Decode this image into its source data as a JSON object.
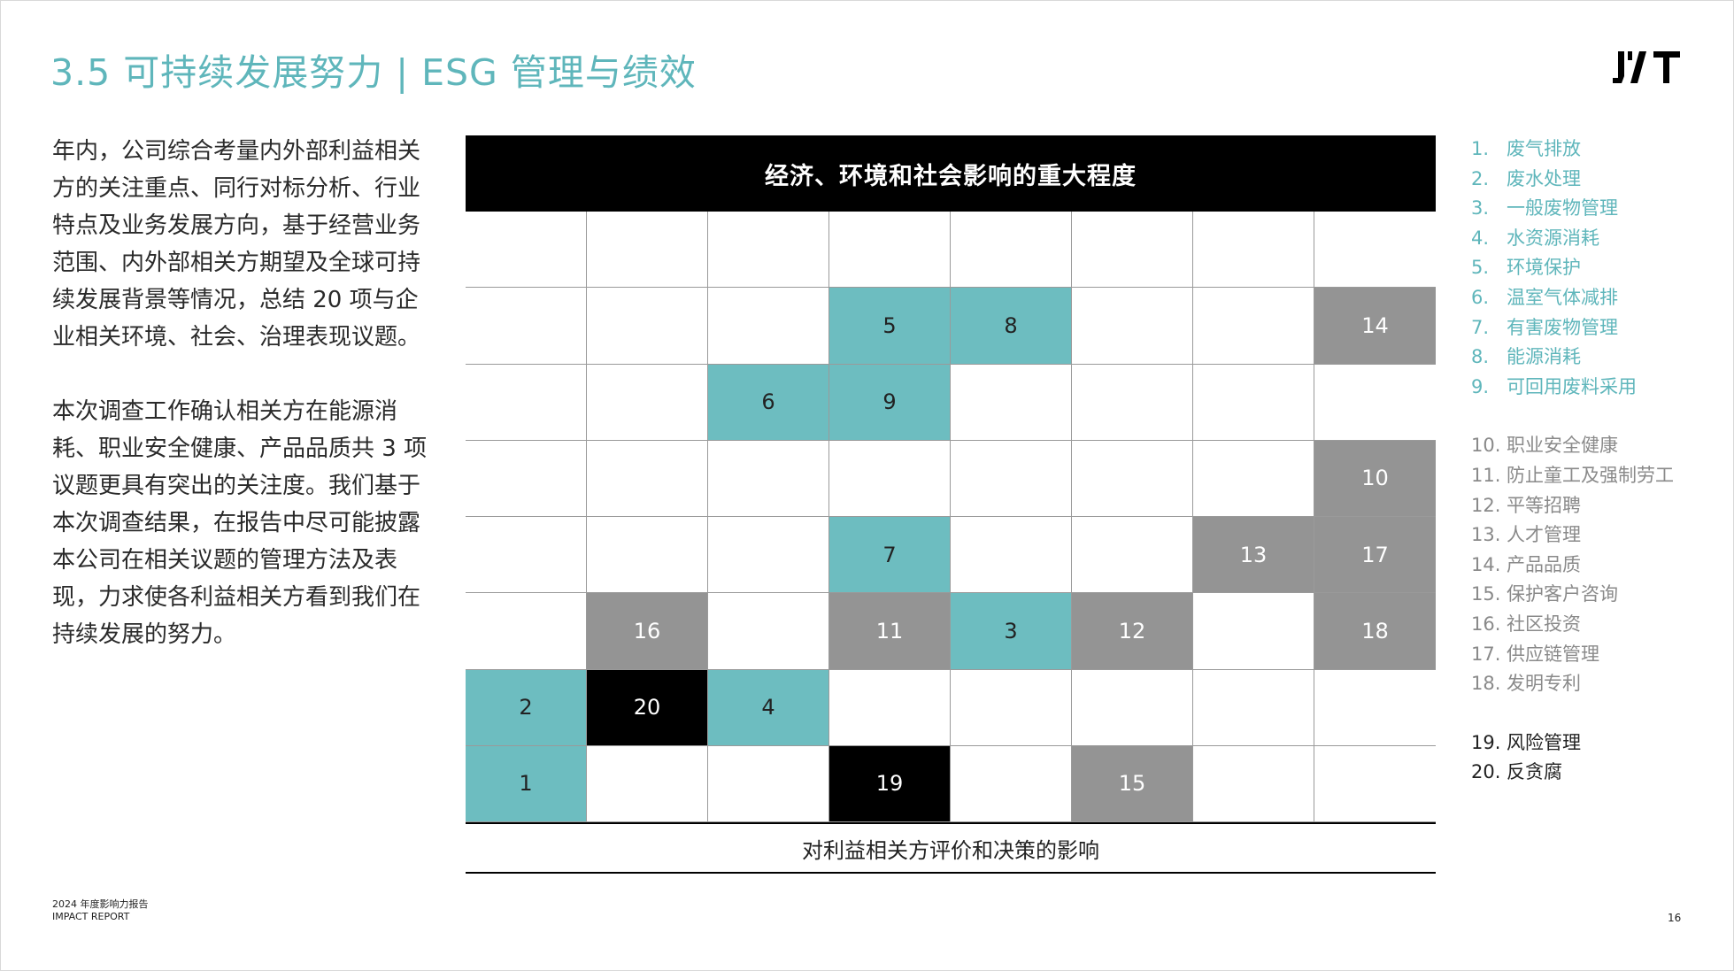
{
  "header": {
    "title": "3.5 可持续发展努力 | ESG 管理与绩效",
    "logo_text": "JYT"
  },
  "intro": {
    "paragraph1": "年内，公司综合考量内外部利益相关方的关注重点、同行对标分析、行业特点及业务发展方向，基于经营业务范围、内外部相关方期望及全球可持续发展背景等情况，总结 20 项与企业相关环境、社会、治理表现议题。",
    "paragraph2": "本次调查工作确认相关方在能源消耗、职业安全健康、产品品质共 3 项议题更具有突出的关注度。我们基于本次调查结果，在报告中尽可能披露本公司在相关议题的管理方法及表现，力求使各利益相关方看到我们在持续发展的努力。"
  },
  "matrix": {
    "y_title": "经济、环境和社会影响的重大程度",
    "x_title": "对利益相关方评价和决策的影响",
    "colors": {
      "environment": "#6dbdc0",
      "social": "#949494",
      "governance": "#000000"
    },
    "rows": [
      [
        null,
        null,
        null,
        null,
        null,
        null,
        null,
        null
      ],
      [
        null,
        null,
        null,
        {
          "n": "5",
          "c": "env"
        },
        {
          "n": "8",
          "c": "env"
        },
        null,
        null,
        {
          "n": "14",
          "c": "soc"
        }
      ],
      [
        null,
        null,
        {
          "n": "6",
          "c": "env"
        },
        {
          "n": "9",
          "c": "env"
        },
        null,
        null,
        null,
        null
      ],
      [
        null,
        null,
        null,
        null,
        null,
        null,
        null,
        {
          "n": "10",
          "c": "soc"
        }
      ],
      [
        null,
        null,
        null,
        {
          "n": "7",
          "c": "env"
        },
        null,
        null,
        {
          "n": "13",
          "c": "soc"
        },
        {
          "n": "17",
          "c": "soc"
        }
      ],
      [
        null,
        {
          "n": "16",
          "c": "soc"
        },
        null,
        {
          "n": "11",
          "c": "soc"
        },
        {
          "n": "3",
          "c": "env"
        },
        {
          "n": "12",
          "c": "soc"
        },
        null,
        {
          "n": "18",
          "c": "soc"
        }
      ],
      [
        {
          "n": "2",
          "c": "env"
        },
        {
          "n": "20",
          "c": "gov"
        },
        {
          "n": "4",
          "c": "env"
        },
        null,
        null,
        null,
        null,
        null
      ],
      [
        {
          "n": "1",
          "c": "env"
        },
        null,
        null,
        {
          "n": "19",
          "c": "gov"
        },
        null,
        {
          "n": "15",
          "c": "soc"
        },
        null,
        null
      ]
    ]
  },
  "legend": {
    "environment": [
      {
        "num": "1.",
        "label": "废气排放"
      },
      {
        "num": "2.",
        "label": "废水处理"
      },
      {
        "num": "3.",
        "label": "一般废物管理"
      },
      {
        "num": "4.",
        "label": "水资源消耗"
      },
      {
        "num": "5.",
        "label": "环境保护"
      },
      {
        "num": "6.",
        "label": "温室气体减排"
      },
      {
        "num": "7.",
        "label": "有害废物管理"
      },
      {
        "num": "8.",
        "label": "能源消耗"
      },
      {
        "num": "9.",
        "label": "可回用废料采用"
      }
    ],
    "social": [
      {
        "num": "10.",
        "label": "职业安全健康"
      },
      {
        "num": "11.",
        "label": "防止童工及强制劳工"
      },
      {
        "num": "12.",
        "label": "平等招聘"
      },
      {
        "num": "13.",
        "label": "人才管理"
      },
      {
        "num": "14.",
        "label": "产品品质"
      },
      {
        "num": "15.",
        "label": "保护客户咨询"
      },
      {
        "num": "16.",
        "label": "社区投资"
      },
      {
        "num": "17.",
        "label": "供应链管理"
      },
      {
        "num": "18.",
        "label": "发明专利"
      }
    ],
    "governance": [
      {
        "num": "19.",
        "label": "风险管理"
      },
      {
        "num": "20.",
        "label": "反贪腐"
      }
    ]
  },
  "footer": {
    "report_cn": "2024 年度影响力报告",
    "report_en": "IMPACT REPORT",
    "page_number": "16"
  }
}
